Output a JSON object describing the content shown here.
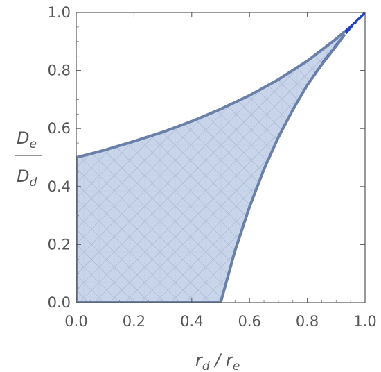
{
  "chart_data": {
    "type": "area",
    "xlabel": {
      "main": "r",
      "sub": "d",
      "sep": " / ",
      "main2": "r",
      "sub2": "e"
    },
    "ylabel": {
      "num_main": "D",
      "num_sub": "e",
      "den_main": "D",
      "den_sub": "d"
    },
    "xlim": [
      0,
      1
    ],
    "ylim": [
      0,
      1
    ],
    "xticks": [
      "0.0",
      "0.2",
      "0.4",
      "0.6",
      "0.8",
      "1.0"
    ],
    "yticks": [
      "0.0",
      "0.2",
      "0.4",
      "0.6",
      "0.8",
      "1.0"
    ],
    "grid": false,
    "series": [
      {
        "style": "solid-blue-upper-boundary",
        "color": "#1f3fc4",
        "x": [
          0.0,
          0.1,
          0.2,
          0.3,
          0.4,
          0.5,
          0.6,
          0.7,
          0.8,
          0.9,
          0.95,
          1.0
        ],
        "y": [
          0.5,
          0.526,
          0.556,
          0.588,
          0.625,
          0.667,
          0.714,
          0.769,
          0.833,
          0.909,
          0.952,
          1.0
        ]
      },
      {
        "style": "dashed-blue-lower-boundary",
        "color": "#1f3fc4",
        "x": [
          0.5,
          0.55,
          0.6,
          0.65,
          0.7,
          0.75,
          0.8,
          0.85,
          0.9,
          0.95,
          1.0
        ],
        "y": [
          0.0,
          0.182,
          0.333,
          0.462,
          0.571,
          0.667,
          0.75,
          0.824,
          0.889,
          0.947,
          1.0
        ]
      },
      {
        "style": "shaded-region-gray-outline",
        "color": "#6a80a8",
        "fill": "#c9d5ea",
        "upper_x": [
          0.0,
          0.1,
          0.2,
          0.3,
          0.4,
          0.5,
          0.6,
          0.7,
          0.8,
          0.9,
          0.93
        ],
        "upper_y": [
          0.5,
          0.526,
          0.556,
          0.588,
          0.625,
          0.667,
          0.714,
          0.769,
          0.833,
          0.909,
          0.935
        ],
        "lower_x": [
          0.0,
          0.5,
          0.55,
          0.6,
          0.65,
          0.7,
          0.75,
          0.8,
          0.85,
          0.9,
          0.93
        ],
        "lower_y": [
          0.0,
          0.0,
          0.18,
          0.33,
          0.46,
          0.57,
          0.665,
          0.75,
          0.82,
          0.885,
          0.925
        ]
      }
    ]
  }
}
